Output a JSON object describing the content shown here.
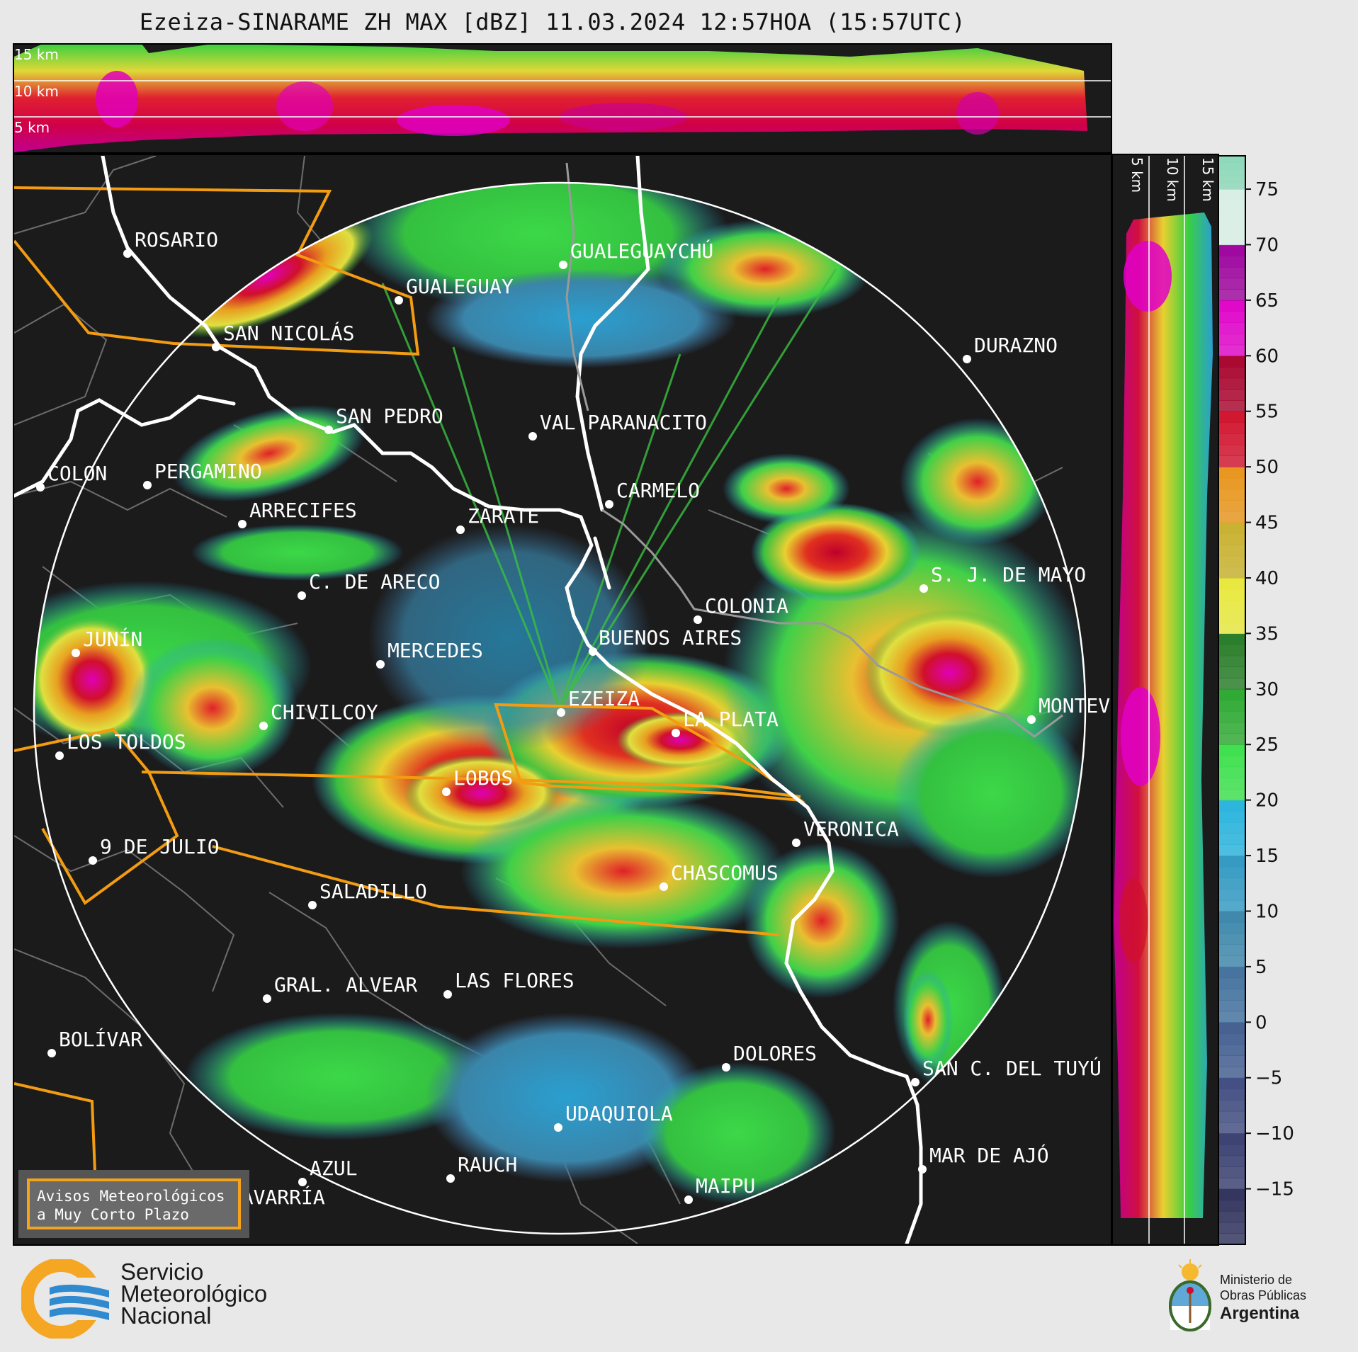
{
  "title": "Ezeiza-SINARAME ZH MAX [dBZ] 11.03.2024 12:57HOA (15:57UTC)",
  "top_panel": {
    "height_labels": [
      "15 km",
      "10 km",
      "5 km"
    ]
  },
  "side_panel": {
    "height_labels": [
      "5 km",
      "10 km",
      "15 km"
    ]
  },
  "colorbar": {
    "unit": "dBZ",
    "ticks": [
      "75",
      "70",
      "65",
      "60",
      "55",
      "50",
      "45",
      "40",
      "35",
      "30",
      "25",
      "20",
      "15",
      "10",
      "5",
      "0",
      "−5",
      "−10",
      "−15"
    ],
    "colors": {
      "-20": "#2d2f5a",
      "-15": "#363c6e",
      "-10": "#3d4a80",
      "-5": "#3f5c8f",
      "0": "#3f6f9c",
      "5": "#3a85aa",
      "10": "#2f98c2",
      "15": "#25b3dd",
      "20": "#39e04a",
      "25": "#2aa82e",
      "30": "#237a23",
      "35": "#e8e83a",
      "40": "#c8b02a",
      "45": "#e89418",
      "50": "#d0102a",
      "55": "#a8002a",
      "60": "#e000c8",
      "65": "#9c009c",
      "70": "#d8efe6",
      "75": "#8ad8b8"
    }
  },
  "map": {
    "cities": [
      {
        "name": "ROSARIO"
      },
      {
        "name": "GUALEGUAYCHÚ"
      },
      {
        "name": "GUALEGUAY"
      },
      {
        "name": "SAN NICOLÁS"
      },
      {
        "name": "DURAZNO"
      },
      {
        "name": "SAN PEDRO"
      },
      {
        "name": "VAL PARANACITO"
      },
      {
        "name": "COLON"
      },
      {
        "name": "PERGAMINO"
      },
      {
        "name": "CARMELO"
      },
      {
        "name": "ARRECIFES"
      },
      {
        "name": "ZÁRATE"
      },
      {
        "name": "C. DE ARECO"
      },
      {
        "name": "S. J. DE MAYO"
      },
      {
        "name": "COLONIA"
      },
      {
        "name": "JUNÍN"
      },
      {
        "name": "BUENOS AIRES"
      },
      {
        "name": "MERCEDES"
      },
      {
        "name": "EZEIZA"
      },
      {
        "name": "MONTEVIDEO"
      },
      {
        "name": "CHIVILCOY"
      },
      {
        "name": "LA PLATA"
      },
      {
        "name": "LOS TOLDOS"
      },
      {
        "name": "LOBOS"
      },
      {
        "name": "VERONICA"
      },
      {
        "name": "9 DE JULIO"
      },
      {
        "name": "CHASCOMUS"
      },
      {
        "name": "SALADILLO"
      },
      {
        "name": "GRAL. ALVEAR"
      },
      {
        "name": "LAS FLORES"
      },
      {
        "name": "BOLÍVAR"
      },
      {
        "name": "DOLORES"
      },
      {
        "name": "SAN C. DEL TUYÚ"
      },
      {
        "name": "UDAQUIOLA"
      },
      {
        "name": "MAR DE AJÓ"
      },
      {
        "name": "AZUL"
      },
      {
        "name": "RAUCH"
      },
      {
        "name": "OLAVARRÍA"
      },
      {
        "name": "MAIPU"
      }
    ]
  },
  "notice": {
    "line1": "Avisos Meteorológicos",
    "line2": "a Muy Corto Plazo"
  },
  "smn_logo": {
    "line1": "Servicio",
    "line2": "Meteorológico",
    "line3": "Nacional"
  },
  "ministry_logo": {
    "line1": "Ministerio de",
    "line2": "Obras Públicas",
    "line3": "Argentina"
  }
}
